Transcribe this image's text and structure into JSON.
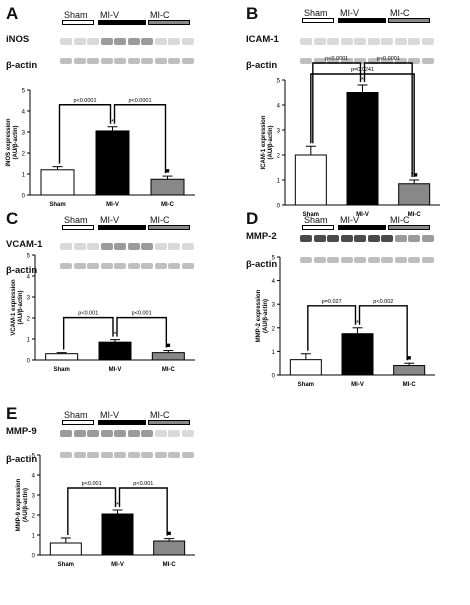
{
  "colors": {
    "sham": "#ffffff",
    "miv": "#000000",
    "mic": "#888888",
    "blot_dark": "#2a2a2a",
    "blot_mid": "#8a8a8a",
    "blot_light": "#d2d2d2"
  },
  "panels": [
    {
      "letter": "A",
      "protein": "iNOS",
      "actin": "β-actin",
      "groups": [
        "Sham",
        "MI-V",
        "MI-C"
      ]
    },
    {
      "letter": "B",
      "protein": "ICAM-1",
      "actin": "β-actin",
      "groups": [
        "Sham",
        "MI-V",
        "MI-C"
      ]
    },
    {
      "letter": "C",
      "protein": "VCAM-1",
      "actin": "β-actin",
      "groups": [
        "Sham",
        "MI-V",
        "MI-C"
      ]
    },
    {
      "letter": "D",
      "protein": "MMP-2",
      "actin": "β-actin",
      "groups": [
        "Sham",
        "MI-V",
        "MI-C"
      ]
    },
    {
      "letter": "E",
      "protein": "MMP-9",
      "actin": "β-actin",
      "groups": [
        "Sham",
        "MI-V",
        "MI-C"
      ]
    }
  ],
  "chart_data": [
    {
      "type": "bar",
      "panel": "A",
      "categories": [
        "Sham",
        "MI-V",
        "MI-C"
      ],
      "values": [
        1.2,
        3.05,
        0.75
      ],
      "errors": [
        0.15,
        0.2,
        0.15
      ],
      "ylabel": "iNOS expression\n(AU/β-actin)",
      "ylim": [
        0,
        5
      ],
      "yticks": [
        0,
        1,
        2,
        3,
        4,
        5
      ],
      "markers": [
        "",
        "*",
        "■"
      ],
      "comparisons": [
        {
          "from": 0,
          "to": 1,
          "label": "p<0.0001"
        },
        {
          "from": 1,
          "to": 2,
          "label": "p<0.0001"
        }
      ]
    },
    {
      "type": "bar",
      "panel": "B",
      "categories": [
        "Sham",
        "MI-V",
        "MI-C"
      ],
      "values": [
        2.0,
        4.5,
        0.85
      ],
      "errors": [
        0.35,
        0.3,
        0.15
      ],
      "ylabel": "ICAM-1 expression\n(AU/β-actin)",
      "ylim": [
        0,
        5
      ],
      "yticks": [
        0,
        1,
        2,
        3,
        4,
        5
      ],
      "markers": [
        "",
        "*",
        "*■"
      ],
      "comparisons": [
        {
          "from": 0,
          "to": 1,
          "label": "p<0.0001"
        },
        {
          "from": 1,
          "to": 2,
          "label": "p<0.0001"
        },
        {
          "from": 0,
          "to": 2,
          "label": "p=0.0241"
        }
      ]
    },
    {
      "type": "bar",
      "panel": "C",
      "categories": [
        "Sham",
        "MI-V",
        "MI-C"
      ],
      "values": [
        0.3,
        0.85,
        0.35
      ],
      "errors": [
        0.05,
        0.12,
        0.1
      ],
      "ylabel": "VCAM-1 expression\n(AU/β-actin)",
      "ylim": [
        0,
        5
      ],
      "yticks": [
        0,
        1,
        2,
        3,
        4,
        5
      ],
      "markers": [
        "",
        "*",
        "■"
      ],
      "comparisons": [
        {
          "from": 0,
          "to": 1,
          "label": "p<0.001"
        },
        {
          "from": 1,
          "to": 2,
          "label": "p<0.001"
        }
      ]
    },
    {
      "type": "bar",
      "panel": "D",
      "categories": [
        "Sham",
        "MI-V",
        "MI-C"
      ],
      "values": [
        0.65,
        1.75,
        0.4
      ],
      "errors": [
        0.25,
        0.25,
        0.1
      ],
      "ylabel": "MMP-2 expression\n(AU/β-actin)",
      "ylim": [
        0,
        5
      ],
      "yticks": [
        0,
        1,
        2,
        3,
        4,
        5
      ],
      "markers": [
        "",
        "*",
        "■"
      ],
      "comparisons": [
        {
          "from": 0,
          "to": 1,
          "label": "p=0.027"
        },
        {
          "from": 1,
          "to": 2,
          "label": "p<0.002"
        }
      ]
    },
    {
      "type": "bar",
      "panel": "E",
      "categories": [
        "Sham",
        "MI-V",
        "MI-C"
      ],
      "values": [
        0.6,
        2.05,
        0.7
      ],
      "errors": [
        0.25,
        0.2,
        0.12
      ],
      "ylabel": "MMP-9 expression\n(AU/β-actin)",
      "ylim": [
        0,
        5
      ],
      "yticks": [
        0,
        1,
        2,
        3,
        4,
        5
      ],
      "markers": [
        "",
        "*",
        "■"
      ],
      "comparisons": [
        {
          "from": 0,
          "to": 1,
          "label": "p<0.001"
        },
        {
          "from": 1,
          "to": 2,
          "label": "p<0.001"
        }
      ]
    }
  ]
}
